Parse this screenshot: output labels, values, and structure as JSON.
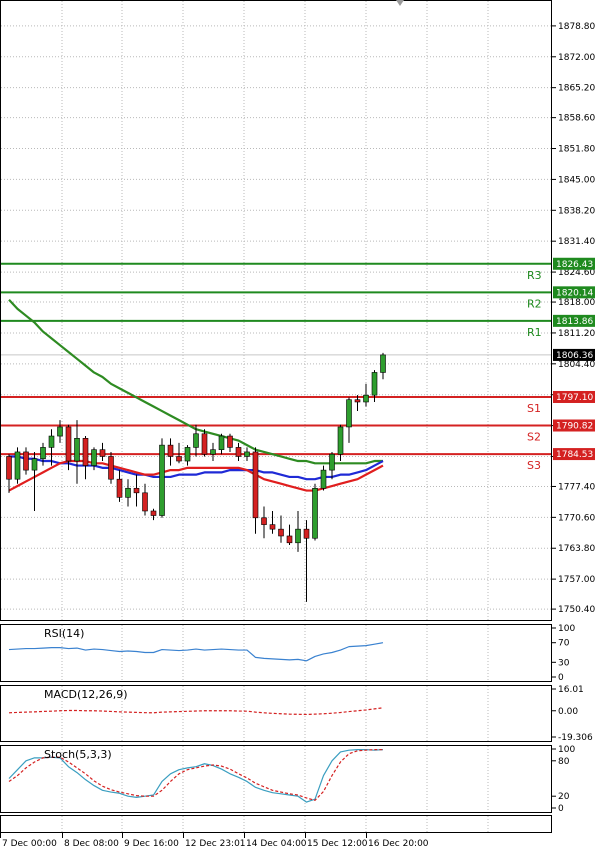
{
  "chart_data": [
    {
      "type": "candlestick",
      "title": "",
      "ylim": [
        1748.0,
        1884.5
      ],
      "y_ticks": [
        "1878.80",
        "1872.00",
        "1865.20",
        "1858.60",
        "1851.80",
        "1845.00",
        "1838.20",
        "1831.40",
        "1824.60",
        "1818.00",
        "1811.20",
        "1804.40",
        "1797.60",
        "1790.80",
        "1784.00",
        "1777.40",
        "1770.60",
        "1763.80",
        "1757.00",
        "1750.40"
      ],
      "x_labels": [
        "7 Dec 00:00",
        "8 Dec 08:00",
        "9 Dec 16:00",
        "12 Dec 23:01",
        "14 Dec 04:00",
        "15 Dec 12:00",
        "16 Dec 20:00"
      ],
      "last_price": "1806.36",
      "candles": [
        [
          1784.0,
          1784.5,
          1776.0,
          1779.0
        ],
        [
          1779.0,
          1786.0,
          1778.0,
          1785.0
        ],
        [
          1785.0,
          1786.0,
          1780.0,
          1781.0
        ],
        [
          1781.0,
          1785.0,
          1772.0,
          1783.5
        ],
        [
          1783.5,
          1787.0,
          1782.0,
          1786.0
        ],
        [
          1786.0,
          1790.0,
          1782.0,
          1788.5
        ],
        [
          1788.5,
          1792.0,
          1787.0,
          1790.5
        ],
        [
          1790.5,
          1791.0,
          1781.0,
          1783.0
        ],
        [
          1783.0,
          1792.0,
          1778.0,
          1788.0
        ],
        [
          1788.0,
          1788.5,
          1779.0,
          1782.0
        ],
        [
          1782.0,
          1786.0,
          1781.0,
          1785.5
        ],
        [
          1785.5,
          1787.0,
          1783.0,
          1784.0
        ],
        [
          1784.0,
          1785.0,
          1778.0,
          1779.0
        ],
        [
          1779.0,
          1781.0,
          1774.0,
          1775.0
        ],
        [
          1775.0,
          1779.0,
          1773.0,
          1777.0
        ],
        [
          1777.0,
          1780.0,
          1773.0,
          1776.0
        ],
        [
          1776.0,
          1778.0,
          1771.0,
          1772.0
        ],
        [
          1772.0,
          1772.5,
          1770.0,
          1771.0
        ],
        [
          1771.0,
          1788.0,
          1770.5,
          1786.5
        ],
        [
          1786.5,
          1788.0,
          1782.0,
          1784.0
        ],
        [
          1784.0,
          1787.0,
          1782.5,
          1783.0
        ],
        [
          1783.0,
          1786.5,
          1782.0,
          1786.0
        ],
        [
          1786.0,
          1791.0,
          1784.0,
          1789.0
        ],
        [
          1789.0,
          1790.0,
          1784.0,
          1784.5
        ],
        [
          1784.5,
          1787.0,
          1783.0,
          1785.5
        ],
        [
          1785.5,
          1789.0,
          1784.5,
          1788.5
        ],
        [
          1788.5,
          1789.0,
          1785.0,
          1786.0
        ],
        [
          1786.0,
          1787.0,
          1783.0,
          1784.0
        ],
        [
          1784.0,
          1786.0,
          1783.0,
          1785.0
        ],
        [
          1785.0,
          1786.0,
          1767.0,
          1770.5
        ],
        [
          1770.5,
          1773.0,
          1766.0,
          1769.0
        ],
        [
          1769.0,
          1772.0,
          1767.0,
          1768.0
        ],
        [
          1768.0,
          1771.0,
          1765.0,
          1766.5
        ],
        [
          1766.5,
          1769.0,
          1764.5,
          1765.0
        ],
        [
          1765.0,
          1772.0,
          1763.0,
          1768.0
        ],
        [
          1768.0,
          1770.0,
          1752.0,
          1766.0
        ],
        [
          1766.0,
          1778.0,
          1765.5,
          1777.0
        ],
        [
          1777.0,
          1782.0,
          1776.5,
          1781.0
        ],
        [
          1781.0,
          1785.0,
          1779.0,
          1784.5
        ],
        [
          1784.5,
          1791.0,
          1783.0,
          1790.5
        ],
        [
          1790.5,
          1797.0,
          1787.0,
          1796.5
        ],
        [
          1796.5,
          1797.5,
          1794.0,
          1796.0
        ],
        [
          1796.0,
          1800.0,
          1795.0,
          1797.5
        ],
        [
          1797.5,
          1803.0,
          1796.0,
          1802.5
        ],
        [
          1802.5,
          1806.8,
          1801.0,
          1806.36
        ]
      ],
      "series": [
        {
          "color": "#2e8b22",
          "values": [
            1818.5,
            1816.5,
            1815.0,
            1813.5,
            1811.5,
            1810.0,
            1808.5,
            1807.0,
            1805.5,
            1804.0,
            1802.5,
            1801.5,
            1800.0,
            1799.0,
            1798.0,
            1797.0,
            1796.0,
            1795.0,
            1794.0,
            1793.0,
            1792.0,
            1791.0,
            1790.0,
            1789.5,
            1789.0,
            1788.5,
            1788.0,
            1787.5,
            1786.5,
            1785.5,
            1785.0,
            1784.5,
            1784.0,
            1783.5,
            1783.0,
            1783.0,
            1782.5,
            1782.5,
            1782.5,
            1782.5,
            1782.5,
            1782.5,
            1782.5,
            1783.0,
            1783.0
          ]
        },
        {
          "color": "#1f2ad6",
          "values": [
            1784.0,
            1784.0,
            1783.5,
            1783.5,
            1783.0,
            1783.0,
            1782.5,
            1782.5,
            1782.0,
            1782.0,
            1782.0,
            1781.5,
            1781.5,
            1781.0,
            1780.5,
            1780.0,
            1780.0,
            1779.5,
            1779.5,
            1779.5,
            1780.0,
            1780.0,
            1780.0,
            1780.5,
            1780.5,
            1780.5,
            1781.0,
            1781.0,
            1781.0,
            1781.0,
            1780.5,
            1780.5,
            1780.0,
            1779.5,
            1779.5,
            1779.0,
            1779.0,
            1779.5,
            1779.5,
            1780.0,
            1780.0,
            1780.5,
            1781.0,
            1782.0,
            1783.0
          ]
        },
        {
          "color": "#e01e1e",
          "values": [
            1776.5,
            1777.5,
            1778.5,
            1779.5,
            1780.5,
            1781.5,
            1782.5,
            1783.0,
            1783.0,
            1783.0,
            1782.5,
            1782.5,
            1782.0,
            1781.5,
            1781.0,
            1780.5,
            1780.0,
            1780.0,
            1780.5,
            1781.0,
            1781.0,
            1781.5,
            1781.5,
            1781.5,
            1781.5,
            1781.5,
            1781.5,
            1781.5,
            1781.0,
            1780.0,
            1779.0,
            1778.5,
            1778.0,
            1777.5,
            1777.0,
            1776.5,
            1776.5,
            1777.0,
            1777.5,
            1778.0,
            1778.5,
            1779.0,
            1780.0,
            1781.0,
            1782.0
          ]
        }
      ],
      "levels": [
        {
          "name": "R3",
          "value": "1826.43",
          "color": "#1f8a1f"
        },
        {
          "name": "R2",
          "value": "1820.14",
          "color": "#1f8a1f"
        },
        {
          "name": "R1",
          "value": "1813.86",
          "color": "#1f8a1f"
        },
        {
          "name": "S1",
          "value": "1797.10",
          "color": "#d42121"
        },
        {
          "name": "S2",
          "value": "1790.82",
          "color": "#d42121"
        },
        {
          "name": "S3",
          "value": "1784.53",
          "color": "#d42121"
        }
      ]
    },
    {
      "type": "line",
      "title": "RSI(14)",
      "ylim": [
        0,
        100
      ],
      "y_ticks": [
        "100",
        "70",
        "30",
        "0"
      ],
      "series": [
        {
          "color": "#3a82d0",
          "values": [
            56,
            57,
            58,
            58,
            59,
            60,
            60,
            58,
            59,
            55,
            57,
            56,
            54,
            52,
            53,
            52,
            50,
            50,
            56,
            55,
            54,
            55,
            57,
            55,
            56,
            57,
            56,
            55,
            55,
            40,
            38,
            37,
            36,
            35,
            36,
            33,
            42,
            47,
            50,
            55,
            62,
            63,
            64,
            67,
            70
          ]
        }
      ]
    },
    {
      "type": "line",
      "title": "MACD(12,26,9)",
      "ylim": [
        -19.306,
        16.01
      ],
      "y_ticks": [
        "16.01",
        "0.00",
        "-19.306"
      ],
      "series": [
        {
          "color": "#d42121",
          "dash": true,
          "values": [
            -1.5,
            -1.2,
            -1.0,
            -0.8,
            -0.5,
            -0.3,
            0.0,
            0.2,
            0.2,
            0.0,
            0.0,
            -0.2,
            -0.5,
            -0.8,
            -1.0,
            -1.2,
            -1.4,
            -1.5,
            -1.0,
            -0.8,
            -0.6,
            -0.4,
            -0.2,
            0.0,
            0.0,
            0.0,
            0.0,
            -0.2,
            -0.3,
            -1.0,
            -1.5,
            -1.9,
            -2.2,
            -2.5,
            -2.6,
            -2.7,
            -2.5,
            -2.2,
            -1.8,
            -1.3,
            -0.6,
            0.0,
            0.6,
            1.4,
            2.2
          ]
        }
      ]
    },
    {
      "type": "line",
      "title": "Stoch(5,3,3)",
      "ylim": [
        0,
        100
      ],
      "y_ticks": [
        "100",
        "80",
        "20",
        "0"
      ],
      "series": [
        {
          "color": "#3a9ec0",
          "values": [
            50,
            65,
            80,
            85,
            85,
            86,
            85,
            70,
            60,
            48,
            38,
            30,
            27,
            25,
            20,
            18,
            20,
            22,
            45,
            58,
            65,
            68,
            70,
            75,
            72,
            66,
            58,
            52,
            45,
            35,
            30,
            26,
            24,
            22,
            20,
            10,
            15,
            55,
            80,
            95,
            98,
            99,
            99,
            98,
            99
          ]
        },
        {
          "color": "#d42121",
          "dash": true,
          "values": [
            45,
            55,
            68,
            78,
            85,
            86,
            86,
            78,
            68,
            58,
            46,
            37,
            31,
            27,
            24,
            21,
            20,
            20,
            30,
            45,
            58,
            65,
            68,
            71,
            73,
            71,
            66,
            58,
            51,
            42,
            36,
            30,
            27,
            24,
            22,
            17,
            13,
            28,
            55,
            78,
            92,
            97,
            98,
            99,
            99
          ]
        }
      ]
    }
  ]
}
